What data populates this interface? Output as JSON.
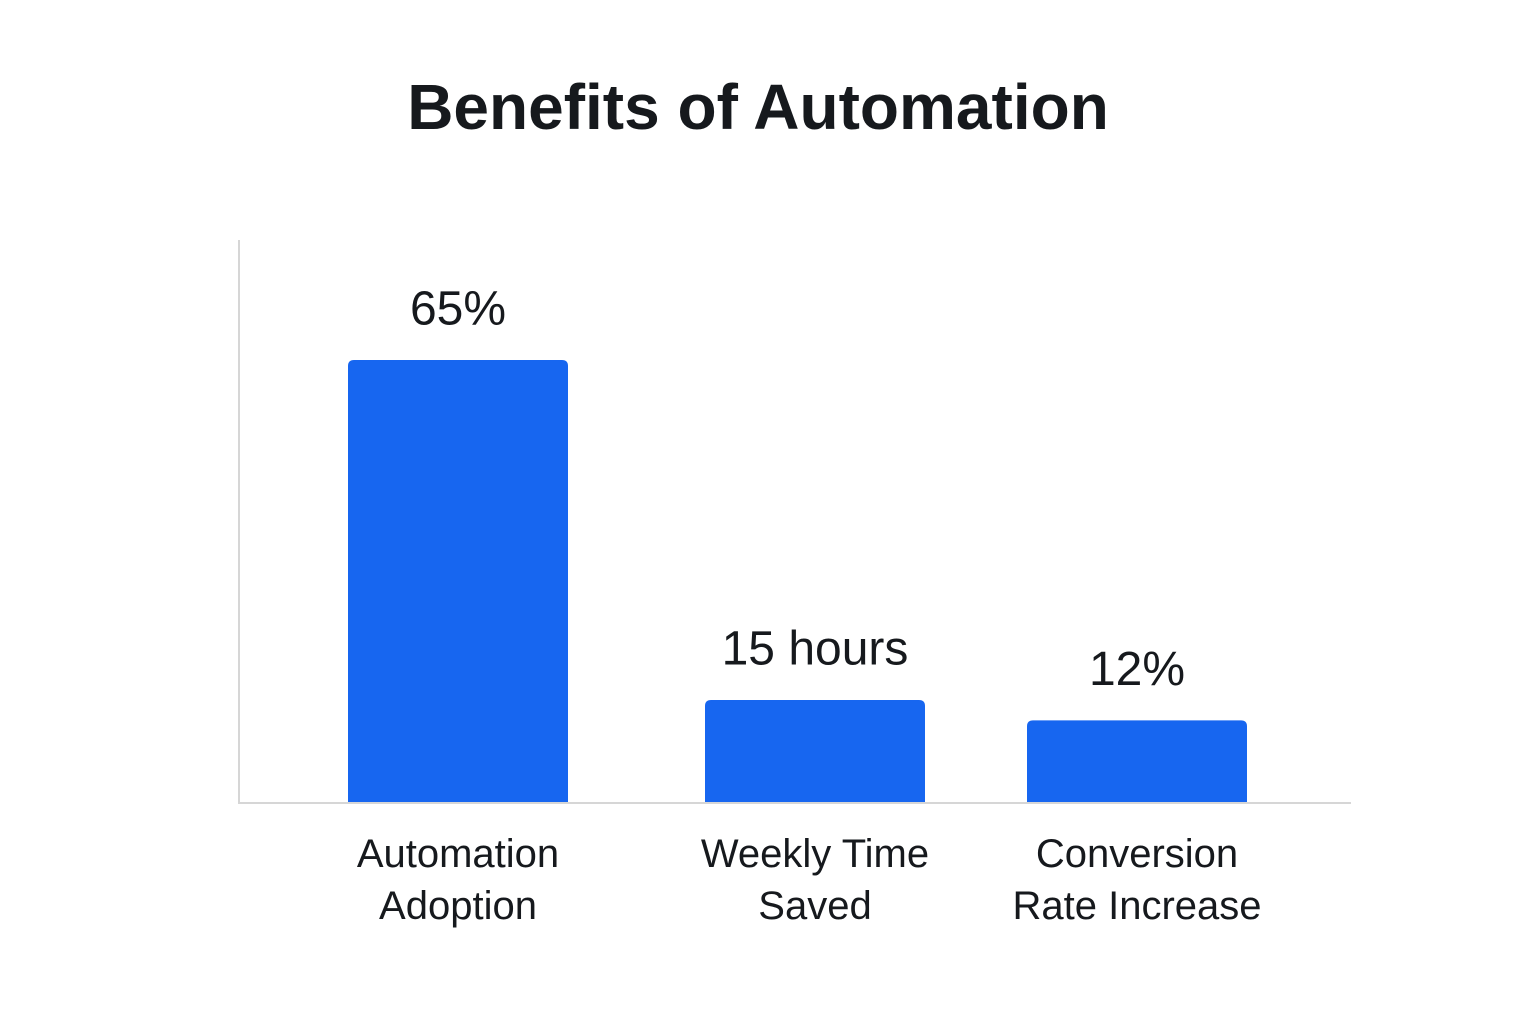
{
  "chart_data": {
    "type": "bar",
    "title": "Benefits of Automation",
    "categories": [
      "Automation Adoption",
      "Weekly Time Saved",
      "Conversion Rate Increase"
    ],
    "values": [
      65,
      15,
      12
    ],
    "value_labels": [
      "65%",
      "15 hours",
      "12%"
    ],
    "color": "#1766f0"
  }
}
